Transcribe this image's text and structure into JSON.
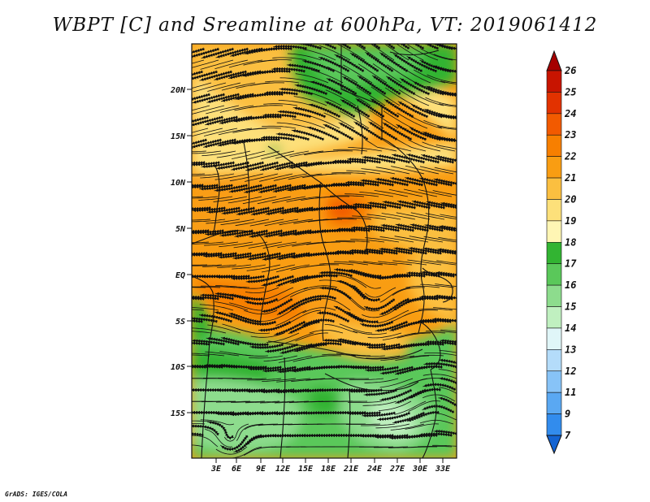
{
  "map": {
    "title": "WBPT [C] and Sreamline at 600hPa, VT: 2019061412",
    "credit": "GrADS: IGES/COLA",
    "lat_ticks": [
      "20N",
      "15N",
      "10N",
      "5N",
      "EQ",
      "5S",
      "10S",
      "15S"
    ],
    "lon_ticks": [
      "3E",
      "6E",
      "9E",
      "12E",
      "15E",
      "18E",
      "21E",
      "24E",
      "27E",
      "30E",
      "33E"
    ],
    "colorbar": {
      "labels": [
        "26",
        "25",
        "24",
        "23",
        "22",
        "21",
        "20",
        "19",
        "18",
        "17",
        "16",
        "15",
        "14",
        "13",
        "12",
        "11",
        "9",
        "7"
      ],
      "colors": [
        "#a50000",
        "#c81400",
        "#e23200",
        "#f25a00",
        "#f77f00",
        "#f99d12",
        "#fbbf40",
        "#fde07a",
        "#fff6b4",
        "#32b432",
        "#5ac85a",
        "#8ddc8d",
        "#c0f0c0",
        "#e0f6f8",
        "#b4dcfa",
        "#87c3f7",
        "#5aa8f2",
        "#328ced",
        "#1464d2"
      ]
    }
  }
}
